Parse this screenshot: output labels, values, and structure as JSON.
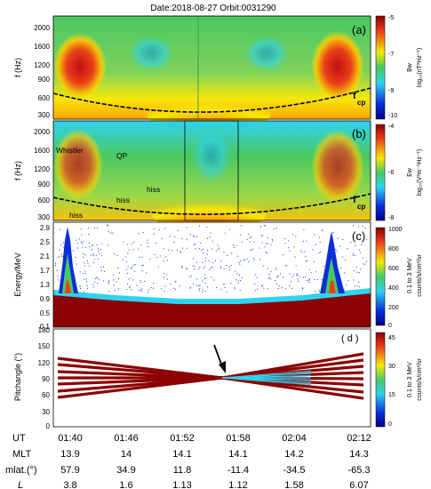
{
  "header": "Date:2018-08-27   Orbit:0031290",
  "panels": [
    {
      "tag": "(a)",
      "ylabel": "f (Hz)",
      "yticks": [
        "2000",
        "1600",
        "1200",
        "900",
        "600",
        "300"
      ],
      "cbar_ticks": [
        "-5",
        "-7",
        "-9",
        "-10"
      ],
      "cbar_label1": "Bw",
      "cbar_label2": "log₁₀(nT²Hz⁻¹)",
      "annotations": [
        "f",
        "cp"
      ]
    },
    {
      "tag": "(b)",
      "ylabel": "f (Hz)",
      "yticks": [
        "2000",
        "1600",
        "1200",
        "900",
        "600",
        "300"
      ],
      "cbar_ticks": [
        "-4",
        "-6",
        "-8"
      ],
      "cbar_label1": "Ew",
      "cbar_label2": "log₁₀(V²m⁻²Hz⁻¹)",
      "annotations": [
        "Whistler",
        "QP",
        "hiss",
        "hiss",
        "hiss",
        "f",
        "cp"
      ]
    },
    {
      "tag": "(c)",
      "ylabel": "Energy/MeV",
      "yticks": [
        "2.9",
        "2.5",
        "2.1",
        "1.7",
        "1.3",
        "0.9",
        "0.5",
        "0.1"
      ],
      "cbar_ticks": [
        "1000",
        "800",
        "600",
        "400",
        "200",
        "0"
      ],
      "cbar_label1": "0.1 to 3 MeV",
      "cbar_label2": "counts/s/cm²/sr"
    },
    {
      "tag": "( d )",
      "ylabel": "Pitchangle (°)",
      "yticks": [
        "180",
        "150",
        "120",
        "90",
        "60",
        "30",
        "0"
      ],
      "cbar_ticks": [
        "45",
        "30",
        "15",
        "0"
      ],
      "cbar_label1": "0.1 to 3 MeV",
      "cbar_label2": "counts/s/cm²/sr"
    }
  ],
  "axis_table": {
    "rows": [
      {
        "label": "UT",
        "values": [
          "01:40",
          "01:46",
          "01:52",
          "01:58",
          "02:04",
          "02:12"
        ]
      },
      {
        "label": "MLT",
        "values": [
          "13.9",
          "14",
          "14.1",
          "14.1",
          "14.2",
          "14.3"
        ]
      },
      {
        "label": "mlat.(°)",
        "values": [
          "57.9",
          "34.9",
          "11.8",
          "-11.4",
          "-34.5",
          "-65.3"
        ]
      },
      {
        "label": "L",
        "values": [
          "3.8",
          "1.6",
          "1.13",
          "1.12",
          "1.58",
          "6.07"
        ]
      }
    ]
  },
  "colors": {
    "red": "#c01010",
    "dark_red": "#8b0000",
    "yellow": "#f5e80a",
    "green": "#49c862",
    "cyan": "#2fd3ef",
    "blue": "#0a2fd8",
    "navy": "#00008b"
  }
}
